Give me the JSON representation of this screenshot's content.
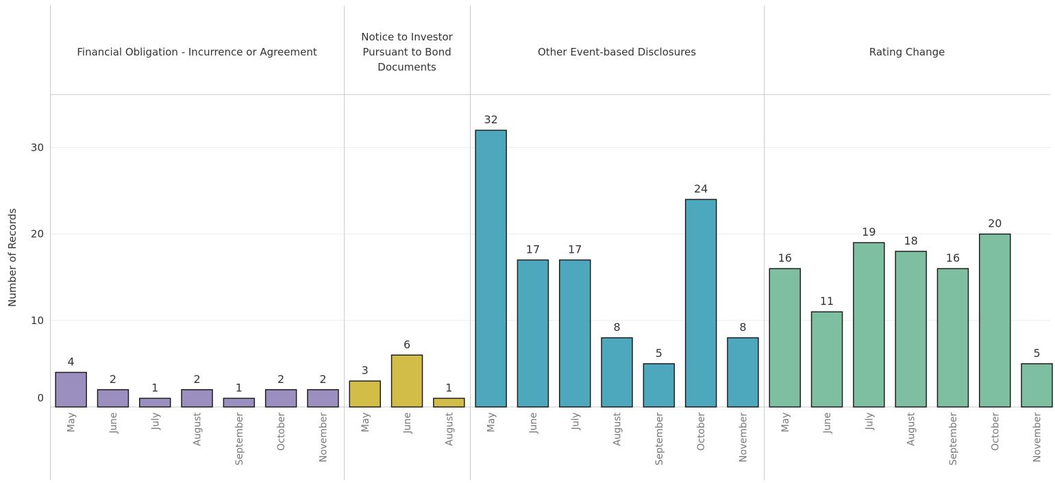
{
  "chart_data": {
    "type": "bar",
    "ylabel": "Number of Records",
    "ylim": [
      0,
      36
    ],
    "yticks": [
      0,
      10,
      20,
      30
    ],
    "grid": true,
    "legend": "none",
    "panels": [
      {
        "title_lines": [
          "Financial Obligation - Incurrence or Agreement"
        ],
        "color": "#9b8fbf",
        "categories": [
          "May",
          "June",
          "July",
          "August",
          "September",
          "October",
          "November"
        ],
        "values": [
          4,
          2,
          1,
          2,
          1,
          2,
          2
        ]
      },
      {
        "title_lines": [
          "Notice to Investor",
          "Pursuant to Bond",
          "Documents"
        ],
        "color": "#d2bd49",
        "categories": [
          "May",
          "June",
          "August"
        ],
        "values": [
          3,
          6,
          1
        ]
      },
      {
        "title_lines": [
          "Other Event-based Disclosures"
        ],
        "color": "#4ea8bd",
        "categories": [
          "May",
          "June",
          "July",
          "August",
          "September",
          "October",
          "November"
        ],
        "values": [
          32,
          17,
          17,
          8,
          5,
          24,
          8
        ]
      },
      {
        "title_lines": [
          "Rating Change"
        ],
        "color": "#7fbfa1",
        "categories": [
          "May",
          "June",
          "July",
          "August",
          "September",
          "October",
          "November"
        ],
        "values": [
          16,
          11,
          19,
          18,
          16,
          20,
          5
        ]
      }
    ]
  }
}
